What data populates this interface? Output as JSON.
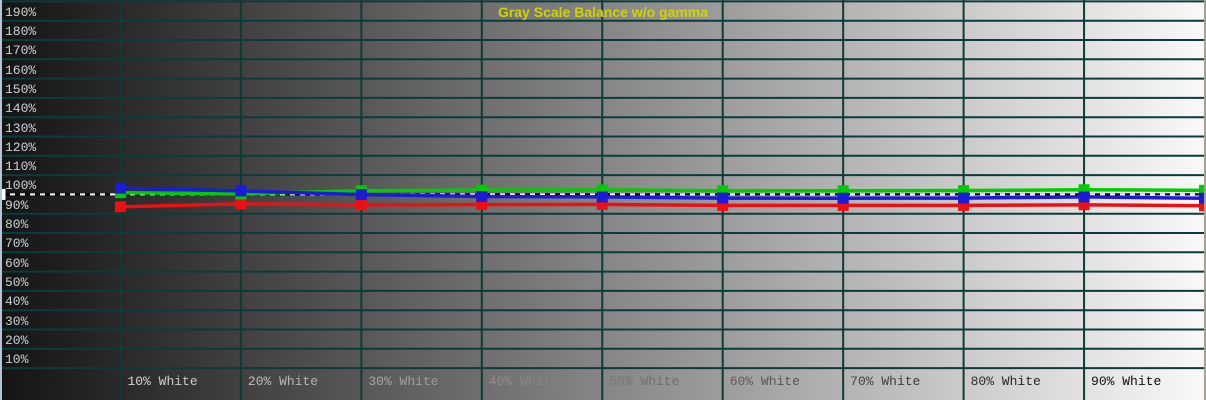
{
  "chart_data": {
    "type": "line",
    "title": "Gray Scale Balance w/o gamma",
    "title_color": "#d2d200",
    "xlabel": "",
    "ylabel": "",
    "xlim_pct": [
      0,
      100
    ],
    "ylim": [
      0,
      200
    ],
    "x_tick_positions_pct": [
      10,
      20,
      30,
      40,
      50,
      60,
      70,
      80,
      90
    ],
    "x_tick_labels": [
      "10% White",
      "20% White",
      "30% White",
      "40% White",
      "50% White",
      "60% White",
      "70% White",
      "80% White",
      "90% White"
    ],
    "y_tick_values": [
      190,
      180,
      170,
      160,
      150,
      140,
      130,
      120,
      110,
      100,
      90,
      80,
      70,
      60,
      50,
      40,
      30,
      20,
      10
    ],
    "y_tick_labels": [
      "190%",
      "180%",
      "170%",
      "160%",
      "150%",
      "140%",
      "130%",
      "120%",
      "110%",
      "100%",
      "90%",
      "80%",
      "70%",
      "60%",
      "50%",
      "40%",
      "30%",
      "20%",
      "10%"
    ],
    "grid": {
      "on": true,
      "color": "#0c3b3b",
      "x_step_pct": 10,
      "y_step_pct": 10
    },
    "reference_line": {
      "value_pct": 100,
      "style": "dashed",
      "dash_colors": [
        "#ffffff",
        "#000000"
      ]
    },
    "background": {
      "style": "horizontal-gray-ramp",
      "left_color": "#141414",
      "right_color": "#f9f9f9"
    },
    "legend": {
      "shown": false
    },
    "series": [
      {
        "name": "red",
        "color": "#ee1010",
        "x_pct": [
          10,
          20,
          30,
          40,
          50,
          60,
          70,
          80,
          90,
          100
        ],
        "values_pct": [
          93.6,
          95.1,
          94.6,
          94.7,
          94.8,
          94.3,
          94.3,
          94.3,
          94.6,
          94.1
        ]
      },
      {
        "name": "green",
        "color": "#00cc00",
        "x_pct": [
          10,
          20,
          30,
          40,
          50,
          60,
          70,
          80,
          90,
          100
        ],
        "values_pct": [
          100.9,
          100.3,
          101.9,
          102.2,
          102.3,
          101.9,
          101.9,
          102.0,
          102.4,
          102.1
        ]
      },
      {
        "name": "blue",
        "color": "#1c1cd8",
        "x_pct": [
          10,
          20,
          30,
          40,
          50,
          60,
          70,
          80,
          90,
          100
        ],
        "values_pct": [
          103.2,
          101.8,
          99.9,
          98.9,
          98.7,
          98.1,
          98.0,
          98.1,
          98.7,
          98.0
        ]
      },
      {
        "name": "white-reference-point",
        "color": "#ffffff",
        "x_pct": [
          0
        ],
        "values_pct": [
          100
        ]
      }
    ]
  }
}
